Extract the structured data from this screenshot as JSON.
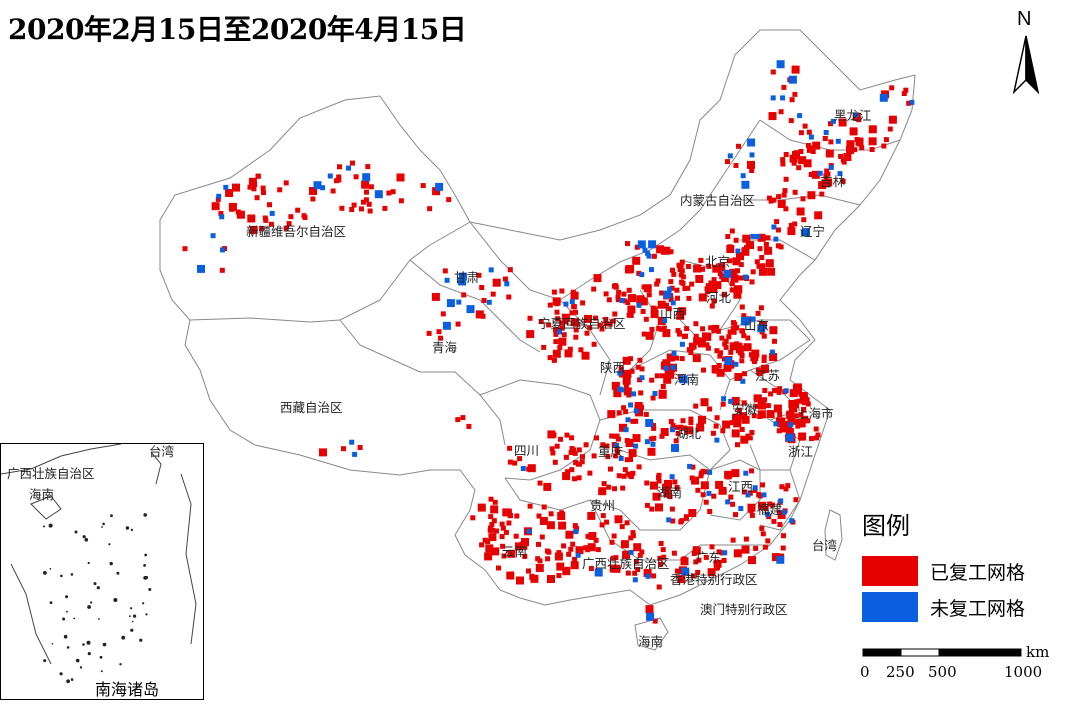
{
  "title": "2020年2月15日至2020年4月15日",
  "north_arrow": {
    "letter": "N"
  },
  "legend": {
    "title": "图例",
    "items": [
      {
        "label": "已复工网格",
        "color": "#e60000"
      },
      {
        "label": "未复工网格",
        "color": "#0a5fe0"
      }
    ]
  },
  "scale_bar": {
    "unit": "km",
    "ticks": [
      "0",
      "250",
      "500",
      "1000"
    ]
  },
  "inset": {
    "label": "南海诸岛"
  },
  "regions": [
    {
      "name": "新疆维吾尔自治区"
    },
    {
      "name": "西藏自治区"
    },
    {
      "name": "青海"
    },
    {
      "name": "甘肃"
    },
    {
      "name": "宁夏回族自治区"
    },
    {
      "name": "内蒙古自治区"
    },
    {
      "name": "黑龙江"
    },
    {
      "name": "吉林"
    },
    {
      "name": "辽宁"
    },
    {
      "name": "北京"
    },
    {
      "name": "河北"
    },
    {
      "name": "山西"
    },
    {
      "name": "陕西"
    },
    {
      "name": "山东"
    },
    {
      "name": "河南"
    },
    {
      "name": "江苏"
    },
    {
      "name": "安徽"
    },
    {
      "name": "上海市"
    },
    {
      "name": "湖北"
    },
    {
      "name": "浙江"
    },
    {
      "name": "四川"
    },
    {
      "name": "重庆"
    },
    {
      "name": "湖南"
    },
    {
      "name": "江西"
    },
    {
      "name": "贵州"
    },
    {
      "name": "福建"
    },
    {
      "name": "云南"
    },
    {
      "name": "广西壮族自治区"
    },
    {
      "name": "广东"
    },
    {
      "name": "香港特别行政区"
    },
    {
      "name": "澳门特别行政区"
    },
    {
      "name": "台湾"
    },
    {
      "name": "海南"
    }
  ],
  "inset_regions": [
    {
      "name": "广西壮族自治区"
    },
    {
      "name": "台湾"
    },
    {
      "name": "海南"
    }
  ]
}
